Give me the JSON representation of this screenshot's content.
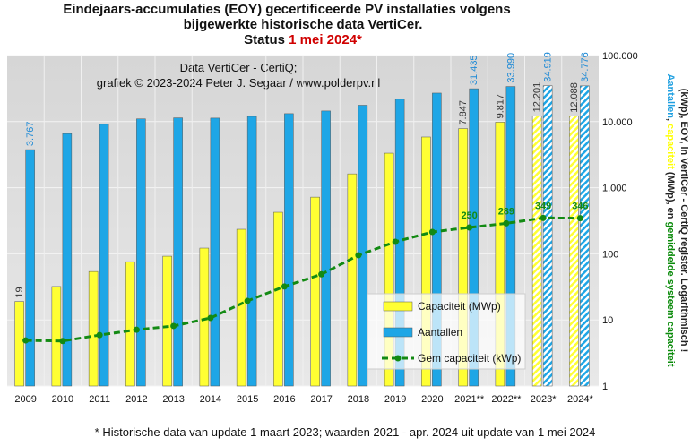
{
  "chart_data": {
    "type": "bar-line",
    "title_lines": [
      "Eindejaars-accumulaties (EOY) gecertificeerde PV installaties volgens",
      "bijgewerkte historische data VertiCer."
    ],
    "status_prefix": "Status",
    "status_date": "1 mei 2024*",
    "annotation_lines": [
      "Data VertiCer - CertiQ;",
      "grafiek © 2023-2024 Peter J. Segaar / www.polderpv.nl"
    ],
    "footnote": "* Historische data van update 1 maart 2023; waarden 2021 - apr. 2024 uit update van 1 mei 2024",
    "ylabel_lines": [
      [
        {
          "text": "Aantallen",
          "color": "#1e9fe0"
        },
        {
          "text": ", ",
          "color": "#222222"
        },
        {
          "text": "capaciteit",
          "color": "#ffff00"
        },
        {
          "text": " (MWp), en ",
          "color": "#222222"
        },
        {
          "text": "gemiddelde systeem capaciteit",
          "color": "#0a8a0a"
        }
      ],
      [
        {
          "text": "(kWp), EOY, in VertiCer - CertiQ register. Logarithmisch !",
          "color": "#222222"
        }
      ]
    ],
    "categories": [
      "2009",
      "2010",
      "2011",
      "2012",
      "2013",
      "2014",
      "2015",
      "2016",
      "2017",
      "2018",
      "2019",
      "2020",
      "2021**",
      "2022**",
      "2023*",
      "2024*"
    ],
    "hatched_indices": [
      14,
      15
    ],
    "series": [
      {
        "name": "Capaciteit (MWp)",
        "kind": "bar",
        "color": "#ffff33",
        "label_color": "#333333",
        "values": [
          19,
          32,
          54,
          76,
          92,
          122,
          235,
          425,
          720,
          1620,
          3330,
          5850,
          7847,
          9817,
          12201,
          12088
        ],
        "value_labels": [
          "19",
          null,
          null,
          null,
          null,
          null,
          null,
          null,
          null,
          null,
          null,
          null,
          "7.847",
          "9.817",
          "12.201",
          "12.088"
        ]
      },
      {
        "name": "Aantallen",
        "kind": "bar",
        "color": "#1ea6e6",
        "label_color": "#1e8ad6",
        "values": [
          3767,
          6600,
          9100,
          11000,
          11400,
          11300,
          12000,
          13200,
          14500,
          17700,
          21800,
          27000,
          31435,
          33990,
          34919,
          34776
        ],
        "value_labels": [
          "3.767",
          null,
          null,
          null,
          null,
          null,
          null,
          null,
          null,
          null,
          null,
          null,
          "31.435",
          "33.990",
          "34.919",
          "34.776"
        ]
      },
      {
        "name": "Gem capaciteit (kWp)",
        "kind": "line",
        "color": "#138a13",
        "label_color": "#138a13",
        "values": [
          4.9,
          4.8,
          5.9,
          7.1,
          8.1,
          10.7,
          19.4,
          32,
          49,
          95,
          152,
          214,
          250,
          289,
          349,
          346
        ],
        "value_labels": [
          null,
          null,
          null,
          null,
          null,
          null,
          null,
          null,
          null,
          null,
          null,
          null,
          "250",
          "289",
          "349",
          "346"
        ]
      }
    ],
    "log_scale": true,
    "ylim": [
      1,
      100000
    ],
    "yticks": [
      1,
      10,
      100,
      {
        "value": 1000,
        "label": "1.000"
      },
      {
        "value": 10000,
        "label": "10.000"
      },
      {
        "value": 100000,
        "label": "100.000"
      }
    ],
    "grid": true,
    "legend": "lower right"
  }
}
